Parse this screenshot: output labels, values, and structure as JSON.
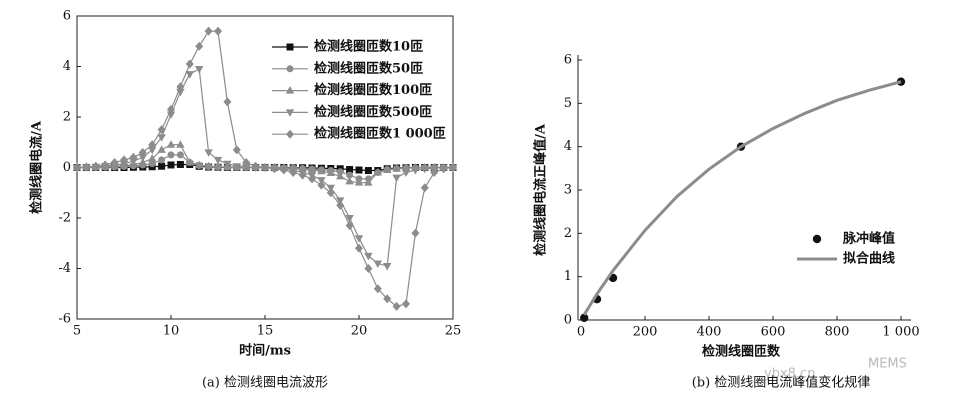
{
  "chart_data": [
    {
      "type": "line",
      "x_label": "时间/ms",
      "y_label": "检测线圈电流/A",
      "caption": "(a) 检测线圈电流波形",
      "xlim": [
        5,
        25
      ],
      "xticks": [
        5,
        10,
        15,
        20,
        25
      ],
      "ylim": [
        -6,
        6
      ],
      "yticks": [
        -6,
        -4,
        -2,
        0,
        2,
        4,
        6
      ],
      "x": [
        5,
        5.5,
        6,
        6.5,
        7,
        7.5,
        8,
        8.5,
        9,
        9.5,
        10,
        10.5,
        11,
        11.5,
        12,
        12.5,
        13,
        13.5,
        14,
        14.5,
        15,
        15.5,
        16,
        16.5,
        17,
        17.5,
        18,
        18.5,
        19,
        19.5,
        20,
        20.5,
        21,
        21.5,
        22,
        22.5,
        23,
        23.5,
        24,
        24.5,
        25
      ],
      "series": [
        {
          "name": "检测线圈匝数10匝",
          "color": "#111111",
          "marker": "square",
          "values": [
            0,
            0,
            0,
            0,
            0,
            0,
            0.01,
            0.02,
            0.03,
            0.05,
            0.1,
            0.12,
            0.12,
            0.05,
            0.02,
            0.01,
            0,
            0,
            0,
            0,
            0,
            0,
            0,
            -0.01,
            -0.01,
            -0.02,
            -0.03,
            -0.04,
            -0.05,
            -0.08,
            -0.1,
            -0.12,
            -0.12,
            -0.05,
            -0.02,
            -0.01,
            0,
            0,
            0,
            0,
            0
          ]
        },
        {
          "name": "检测线圈匝数50匝",
          "color": "#8c8c8c",
          "marker": "circle",
          "values": [
            0,
            0,
            0,
            0.01,
            0.02,
            0.04,
            0.07,
            0.1,
            0.15,
            0.3,
            0.5,
            0.5,
            0.2,
            0.08,
            0.04,
            0.02,
            0.01,
            0,
            0,
            0,
            0,
            0,
            -0.01,
            -0.02,
            -0.04,
            -0.06,
            -0.09,
            -0.12,
            -0.17,
            -0.3,
            -0.45,
            -0.45,
            -0.2,
            -0.08,
            -0.04,
            -0.02,
            -0.01,
            0,
            0,
            0,
            0
          ]
        },
        {
          "name": "检测线圈匝数100匝",
          "color": "#8c8c8c",
          "marker": "triangle-up",
          "values": [
            0,
            0,
            0.01,
            0.02,
            0.04,
            0.07,
            0.12,
            0.2,
            0.35,
            0.7,
            0.9,
            0.9,
            0.2,
            0.1,
            0.05,
            0.03,
            0.01,
            0,
            0,
            0,
            0,
            0,
            -0.02,
            -0.04,
            -0.07,
            -0.1,
            -0.15,
            -0.22,
            -0.35,
            -0.55,
            -0.6,
            -0.6,
            -0.2,
            -0.1,
            -0.05,
            -0.03,
            -0.01,
            0,
            0,
            0,
            0
          ]
        },
        {
          "name": "检测线圈匝数500匝",
          "color": "#8c8c8c",
          "marker": "triangle-down",
          "values": [
            0,
            0.01,
            0.03,
            0.06,
            0.1,
            0.15,
            0.25,
            0.4,
            0.7,
            1.2,
            2.1,
            3.0,
            3.7,
            3.9,
            0.6,
            0.3,
            0.15,
            0.05,
            0.02,
            0,
            0,
            -0.02,
            -0.05,
            -0.1,
            -0.2,
            -0.3,
            -0.5,
            -0.8,
            -1.3,
            -2.0,
            -2.8,
            -3.5,
            -3.8,
            -3.9,
            -0.4,
            -0.2,
            -0.1,
            -0.05,
            -0.02,
            0,
            0
          ]
        },
        {
          "name": "检测线圈匝数1 000匝",
          "color": "#8c8c8c",
          "marker": "diamond",
          "values": [
            0,
            0.02,
            0.05,
            0.1,
            0.2,
            0.3,
            0.4,
            0.6,
            0.9,
            1.5,
            2.3,
            3.2,
            4.1,
            4.8,
            5.4,
            5.4,
            2.6,
            0.7,
            0.2,
            0.05,
            0,
            -0.05,
            -0.1,
            -0.2,
            -0.3,
            -0.45,
            -0.7,
            -1.0,
            -1.5,
            -2.3,
            -3.2,
            -4.0,
            -4.8,
            -5.2,
            -5.5,
            -5.4,
            -2.6,
            -0.8,
            -0.2,
            -0.05,
            0
          ]
        }
      ]
    },
    {
      "type": "scatter",
      "x_label": "检测线圈匝数",
      "y_label": "检测线圈电流正峰值/A",
      "caption": "(b) 检测线圈电流峰值变化规律",
      "xlim": [
        0,
        1000
      ],
      "xticks": [
        0,
        200,
        400,
        600,
        800,
        {
          "value": 1000,
          "label": "1 000"
        }
      ],
      "ylim": [
        0,
        6
      ],
      "yticks": [
        0,
        1,
        2,
        3,
        4,
        5,
        6
      ],
      "series": [
        {
          "name": "脉冲峰值",
          "color": "#111111",
          "marker": "dot",
          "x": [
            10,
            50,
            100,
            500,
            1000
          ],
          "values": [
            0.05,
            0.48,
            0.97,
            4.0,
            5.5
          ]
        },
        {
          "name": "拟合曲线",
          "color": "#8c8c8c",
          "marker": "line",
          "x": [
            10,
            50,
            100,
            200,
            300,
            400,
            500,
            600,
            700,
            800,
            900,
            1000
          ],
          "values": [
            0.12,
            0.6,
            1.14,
            2.07,
            2.85,
            3.48,
            4.0,
            4.42,
            4.77,
            5.07,
            5.3,
            5.5
          ]
        }
      ]
    }
  ],
  "watermark": {
    "site": "ybx8.cn",
    "brand": "MEMS"
  }
}
